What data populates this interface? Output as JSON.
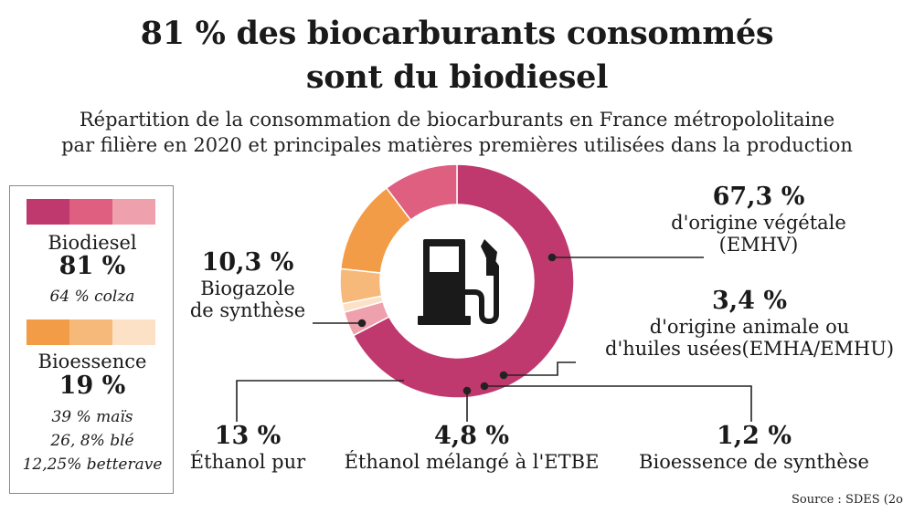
{
  "title_line1": "81 % des biocarburants consommés",
  "title_line2": "sont du biodiesel",
  "subtitle_line1": "Répartition de la consommation de biocarburants en France métropololitaine",
  "subtitle_line2": "par filière en 2020 et principales matières premières utilisées dans la production",
  "legend": {
    "biodiesel": {
      "name": "Biodiesel",
      "value": "81 %",
      "sub": [
        "64 % colza"
      ],
      "colors": [
        "#c0396e",
        "#de5f7f",
        "#eea0ad"
      ]
    },
    "bioessence": {
      "name": "Bioessence",
      "value": "19 %",
      "sub": [
        "39 % maïs",
        "26, 8% blé",
        "12,25% betterave"
      ],
      "colors": [
        "#f39c48",
        "#f6b97a",
        "#fce1c6"
      ]
    }
  },
  "labels": {
    "emhv": {
      "pct": "67,3 %",
      "line1": "d'origine végétale",
      "line2": "(EMHV)"
    },
    "emha": {
      "pct": "3,4 %",
      "line1": "d'origine animale ou",
      "line2": "d'huiles usées(EMHA/EMHU)"
    },
    "biogazole": {
      "pct": "10,3 %",
      "line1": "Biogazole",
      "line2": "de synthèse"
    },
    "ethanol_pur": {
      "pct": "13 %",
      "line1": "Éthanol pur"
    },
    "ethanol_etbe": {
      "pct": "4,8 %",
      "line1": "Éthanol mélangé à l'ETBE"
    },
    "bioessence_synth": {
      "pct": "1,2 %",
      "line1": "Bioessence de synthèse"
    }
  },
  "source": "Source : SDES (2o",
  "chart_data": {
    "type": "pie",
    "donut": true,
    "center_icon": "fuel-pump-icon",
    "slices": [
      {
        "label": "d'origine végétale (EMHV)",
        "value": 67.3,
        "color": "#c0396e"
      },
      {
        "label": "d'origine animale ou d'huiles usées(EMHA/EMHU)",
        "value": 3.4,
        "color": "#eea0ad"
      },
      {
        "label": "Bioessence de synthèse",
        "value": 1.2,
        "color": "#fce1c6"
      },
      {
        "label": "Éthanol mélangé à l'ETBE",
        "value": 4.8,
        "color": "#f6b97a"
      },
      {
        "label": "Éthanol pur",
        "value": 13,
        "color": "#f39c48"
      },
      {
        "label": "Biogazole de synthèse",
        "value": 10.3,
        "color": "#de5f7f"
      }
    ]
  }
}
